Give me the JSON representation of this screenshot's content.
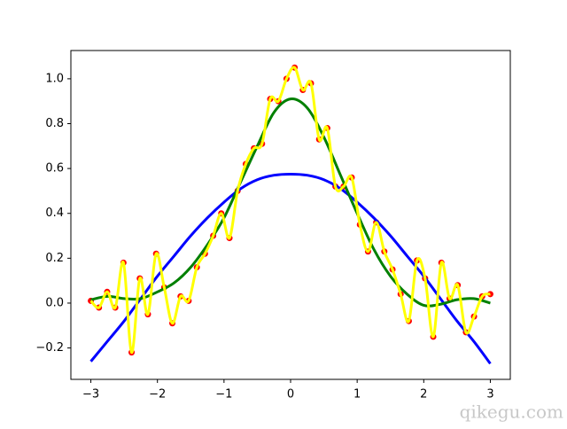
{
  "chart_data": {
    "type": "line",
    "xlim": [
      -3.3,
      3.3
    ],
    "ylim": [
      -0.34,
      1.126
    ],
    "xticks": [
      {
        "value": -3,
        "label": "−3"
      },
      {
        "value": -2,
        "label": "−2"
      },
      {
        "value": -1,
        "label": "−1"
      },
      0,
      1,
      2,
      3
    ],
    "yticks": [
      {
        "value": -0.2,
        "label": "−0.2"
      },
      {
        "value": 0,
        "label": "0.0"
      },
      0.2,
      0.4,
      0.6,
      0.8,
      {
        "value": 1,
        "label": "1.0"
      }
    ],
    "series": [
      {
        "type": "scatter",
        "color": "#ff0000",
        "line_color": "#ffff00",
        "x": [
          -3.0,
          -2.878,
          -2.755,
          -2.633,
          -2.51,
          -2.388,
          -2.265,
          -2.143,
          -2.02,
          -1.898,
          -1.776,
          -1.653,
          -1.531,
          -1.408,
          -1.286,
          -1.163,
          -1.041,
          -0.918,
          -0.796,
          -0.673,
          -0.551,
          -0.429,
          -0.306,
          -0.184,
          -0.061,
          0.061,
          0.184,
          0.306,
          0.429,
          0.551,
          0.673,
          0.796,
          0.918,
          1.041,
          1.163,
          1.286,
          1.408,
          1.531,
          1.653,
          1.776,
          1.898,
          2.02,
          2.143,
          2.265,
          2.388,
          2.51,
          2.633,
          2.755,
          2.878,
          3.0
        ],
        "values": [
          0.01,
          -0.02,
          0.05,
          -0.02,
          0.18,
          -0.22,
          0.11,
          -0.05,
          0.22,
          0.07,
          -0.09,
          0.03,
          0.01,
          0.16,
          0.22,
          0.3,
          0.4,
          0.29,
          0.5,
          0.62,
          0.69,
          0.71,
          0.91,
          0.9,
          1.0,
          1.05,
          0.95,
          0.98,
          0.73,
          0.78,
          0.52,
          0.52,
          0.56,
          0.35,
          0.23,
          0.36,
          0.23,
          0.15,
          0.04,
          -0.08,
          0.19,
          0.11,
          -0.15,
          0.18,
          0.02,
          0.08,
          -0.13,
          -0.06,
          0.03,
          0.04
        ]
      },
      {
        "type": "line",
        "color": "#0000ff",
        "x": [
          -3,
          -2.75,
          -2.5,
          -2.25,
          -2,
          -1.75,
          -1.5,
          -1.25,
          -1,
          -0.75,
          -0.5,
          -0.25,
          0,
          0.25,
          0.5,
          0.75,
          1,
          1.25,
          1.5,
          1.75,
          2,
          2.25,
          2.5,
          2.75,
          3
        ],
        "values": [
          -0.26,
          -0.17,
          -0.08,
          0.02,
          0.12,
          0.21,
          0.3,
          0.38,
          0.45,
          0.51,
          0.55,
          0.57,
          0.575,
          0.57,
          0.55,
          0.51,
          0.45,
          0.38,
          0.3,
          0.21,
          0.12,
          0.02,
          -0.08,
          -0.17,
          -0.27
        ]
      },
      {
        "type": "line",
        "color": "#008000",
        "x": [
          -3,
          -2.75,
          -2.5,
          -2.25,
          -2,
          -1.75,
          -1.5,
          -1.25,
          -1,
          -0.75,
          -0.5,
          -0.25,
          0,
          0.25,
          0.5,
          0.75,
          1,
          1.25,
          1.5,
          1.75,
          2,
          2.25,
          2.5,
          2.75,
          3
        ],
        "values": [
          0.015,
          0.03,
          0.02,
          0.02,
          0.05,
          0.09,
          0.16,
          0.26,
          0.38,
          0.54,
          0.7,
          0.85,
          0.91,
          0.87,
          0.74,
          0.57,
          0.4,
          0.24,
          0.12,
          0.04,
          -0.01,
          -0.005,
          0.015,
          0.02,
          0.0
        ]
      }
    ]
  },
  "watermark": "qikegu.com"
}
